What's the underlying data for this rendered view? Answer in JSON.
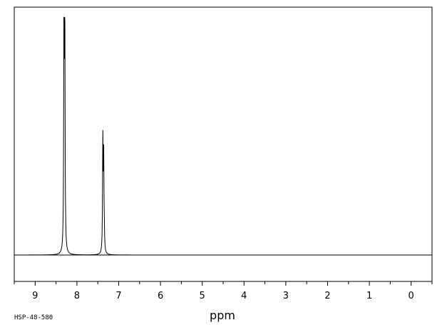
{
  "chart_data": {
    "type": "line",
    "title": "",
    "xlabel": "ppm",
    "ylabel": "",
    "xlim": [
      9.5,
      -0.5
    ],
    "x_direction": "reversed",
    "y_visible": false,
    "grid": false,
    "legend": "none",
    "tick_labels": [
      "9",
      "8",
      "7",
      "6",
      "5",
      "4",
      "3",
      "2",
      "1",
      "0"
    ],
    "tick_values": [
      9,
      8,
      7,
      6,
      5,
      4,
      3,
      2,
      1,
      0
    ],
    "minor_tick_values": [
      9.5,
      8.5,
      7.5,
      6.5,
      5.5,
      4.5,
      3.5,
      2.5,
      1.5,
      0.5,
      -0.5
    ],
    "peaks": [
      {
        "ppm": 8.31,
        "intensity": 1.0
      },
      {
        "ppm": 8.29,
        "intensity": 0.98
      },
      {
        "ppm": 8.305,
        "intensity": 0.13
      },
      {
        "ppm": 7.38,
        "intensity": 0.49
      },
      {
        "ppm": 7.36,
        "intensity": 0.43
      },
      {
        "ppm": 7.345,
        "intensity": 0.06
      }
    ],
    "peak_width_ppm": 0.008,
    "line_color": "#000000",
    "sample_id": "HSP-48-580"
  }
}
